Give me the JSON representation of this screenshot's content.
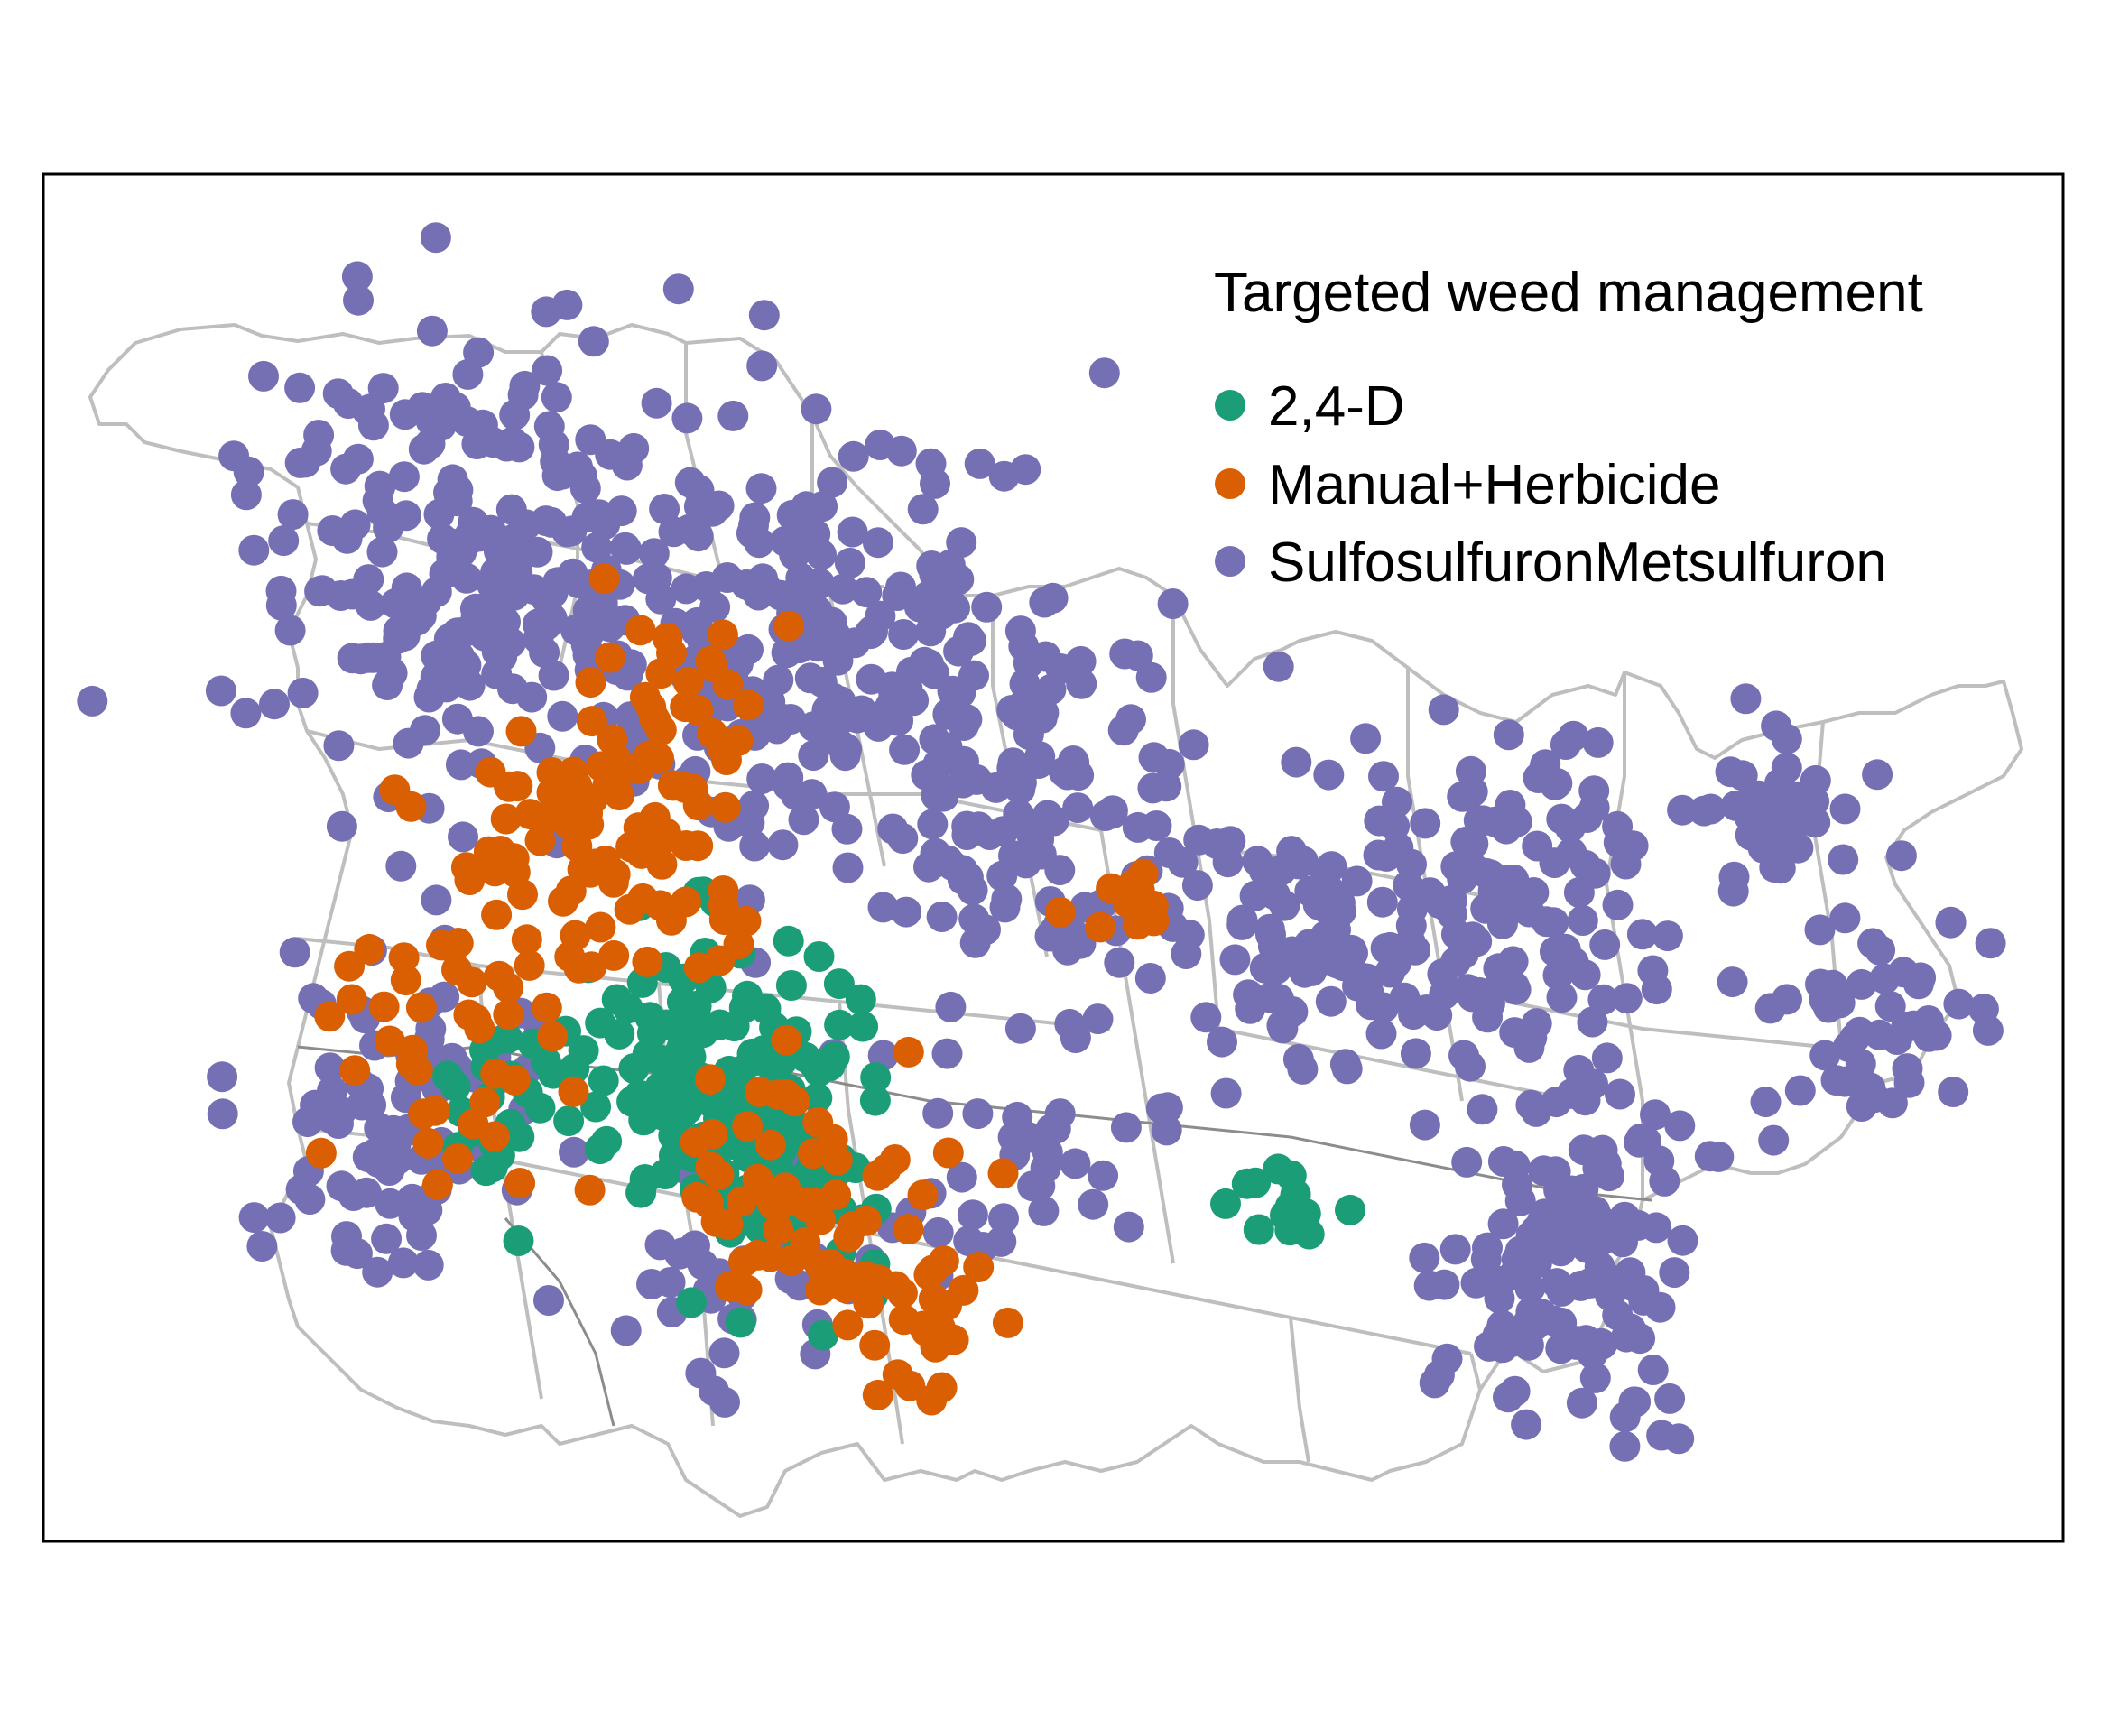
{
  "legend": {
    "title": "Targeted weed management",
    "items": [
      {
        "label": "2,4-D",
        "color": "#1B9E77"
      },
      {
        "label": "Manual+Herbicide",
        "color": "#D95F02"
      },
      {
        "label": "SulfosulfuronMetsulfuron",
        "color": "#7570B3"
      }
    ]
  },
  "colors": {
    "panel_border": "#000000",
    "district_outline": "#BEBEBE",
    "state_outline": "#8C8C8C",
    "background": "#FFFFFF"
  }
}
